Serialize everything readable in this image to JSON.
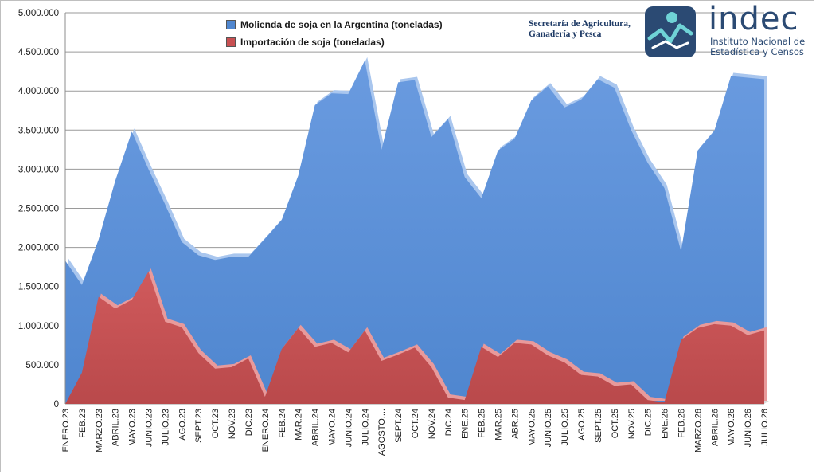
{
  "header": {
    "secretaria_line1": "Secretaría de Agricultura,",
    "secretaria_line2": "Ganadería y Pesca",
    "indec_word": "indec",
    "indec_sub_line1": "Instituto Nacional de",
    "indec_sub_line2": "Estadística y Censos"
  },
  "colors": {
    "molienda": "#5b8fd6",
    "importacion": "#c85052"
  },
  "chart_data": {
    "type": "area",
    "categories": [
      "ENERO.23",
      "FEB.23",
      "MARZO.23",
      "ABRIL.23",
      "MAYO.23",
      "JUNIO.23",
      "JULIO.23",
      "AGO.23",
      "SEPT.23",
      "OCT.23",
      "NOV.23",
      "DIC.23",
      "ENERO.24",
      "FEB.24",
      "MAR.24",
      "ABRIL.24",
      "MAYO.24",
      "JUNIO.24",
      "JULIO.24",
      "AGOSTO....",
      "SEPT.24",
      "OCT.24",
      "NOV.24",
      "DIC.24",
      "ENE.25",
      "FEB.25",
      "MAR.25",
      "ABR.25",
      "MAYO.25",
      "JUNIO.25",
      "JULIO.25",
      "AGO.25",
      "SEPT.25",
      "OCT.25",
      "NOV.25",
      "DIC.25",
      "ENE.26",
      "FEB.26",
      "MARZO.26",
      "ABRIL.26",
      "MAYO.26",
      "JUNIO.26",
      "JULIO.26"
    ],
    "series": [
      {
        "name": "Molienda de soja en la Argentina (toneladas)",
        "values": [
          1830000,
          1520000,
          2100000,
          2850000,
          3480000,
          3000000,
          2550000,
          2070000,
          1900000,
          1840000,
          1880000,
          1880000,
          2110000,
          2350000,
          2920000,
          3820000,
          3970000,
          3960000,
          4390000,
          3250000,
          4110000,
          4140000,
          3410000,
          3640000,
          2900000,
          2630000,
          3240000,
          3390000,
          3880000,
          4060000,
          3790000,
          3890000,
          4150000,
          4040000,
          3500000,
          3080000,
          2760000,
          1950000,
          3240000,
          3490000,
          4190000,
          4170000,
          4150000
        ]
      },
      {
        "name": "Importación de soja (toneladas)",
        "values": [
          0,
          400000,
          1370000,
          1220000,
          1330000,
          1690000,
          1050000,
          980000,
          650000,
          450000,
          470000,
          580000,
          90000,
          700000,
          970000,
          730000,
          780000,
          660000,
          940000,
          550000,
          630000,
          720000,
          470000,
          80000,
          50000,
          730000,
          600000,
          780000,
          760000,
          620000,
          530000,
          370000,
          350000,
          230000,
          250000,
          50000,
          20000,
          820000,
          970000,
          1020000,
          1000000,
          880000,
          940000
        ]
      }
    ],
    "y_ticks": [
      "0",
      "500.000",
      "1.000.000",
      "1.500.000",
      "2.000.000",
      "2.500.000",
      "3.000.000",
      "3.500.000",
      "4.000.000",
      "4.500.000",
      "5.000.000"
    ],
    "ylim": [
      0,
      5000000
    ],
    "grid": "horizontal",
    "legend_position": "top-left"
  }
}
